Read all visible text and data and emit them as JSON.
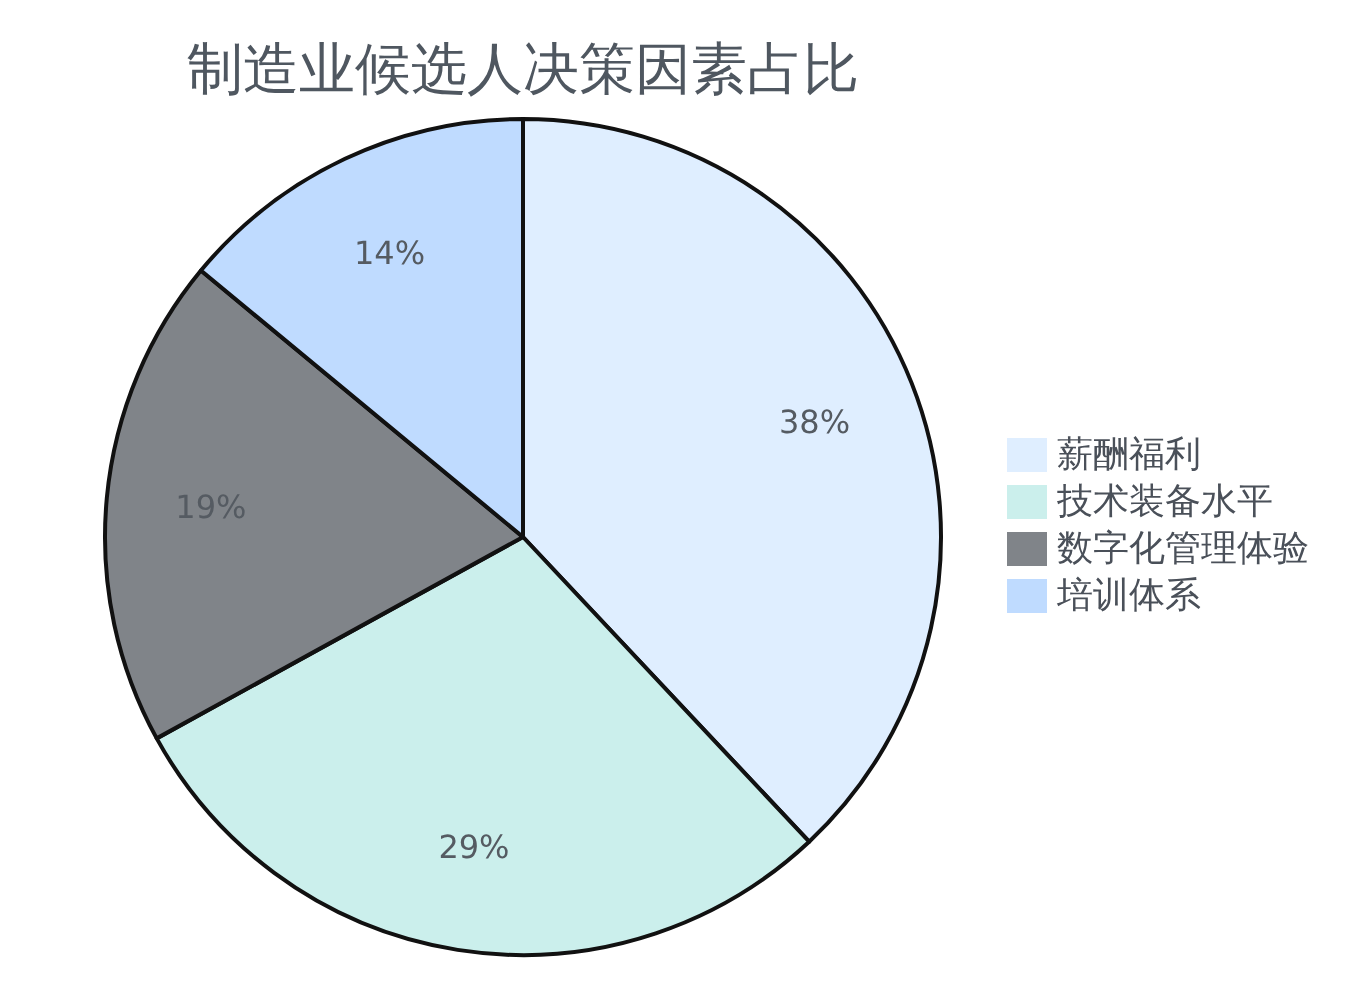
{
  "chart_data": {
    "type": "pie",
    "title": "制造业候选人决策因素占比",
    "categories": [
      "薪酬福利",
      "技术装备水平",
      "数字化管理体验",
      "培训体系"
    ],
    "values": [
      38,
      29,
      19,
      14
    ],
    "colors": [
      "#dfeeff",
      "#cbefec",
      "#808489",
      "#bfdbff"
    ],
    "value_labels": [
      "38%",
      "29%",
      "19%",
      "14%"
    ],
    "legend": "right"
  }
}
